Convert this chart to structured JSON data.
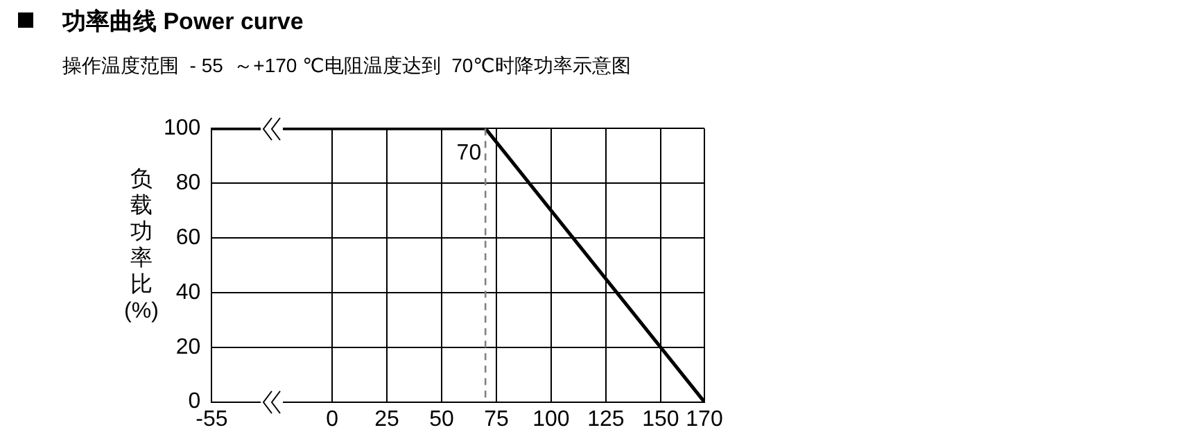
{
  "chart_data": {
    "type": "line",
    "title": "功率曲线 Power curve",
    "subtitle": "操作温度范围  - 55  ～+170 ℃电阻温度达到  70℃时降功率示意图",
    "ylabel": "负载功率比(%)",
    "x": [
      -55,
      70,
      170
    ],
    "series": [
      {
        "color": "#000000",
        "values": [
          100,
          100,
          0
        ]
      }
    ],
    "xlim": [
      -55,
      170
    ],
    "xticks": [
      -55,
      0,
      25,
      50,
      75,
      100,
      125,
      150,
      170
    ],
    "ylim": [
      0,
      100
    ],
    "yticks": [
      0,
      20,
      40,
      60,
      80,
      100
    ],
    "ref_lines": [
      {
        "axis": "x",
        "value": 70,
        "label": "70",
        "color": "#808080",
        "line_style": "dashed"
      }
    ],
    "grid": true,
    "legend": false,
    "marker": "none",
    "line_style": "solid"
  }
}
